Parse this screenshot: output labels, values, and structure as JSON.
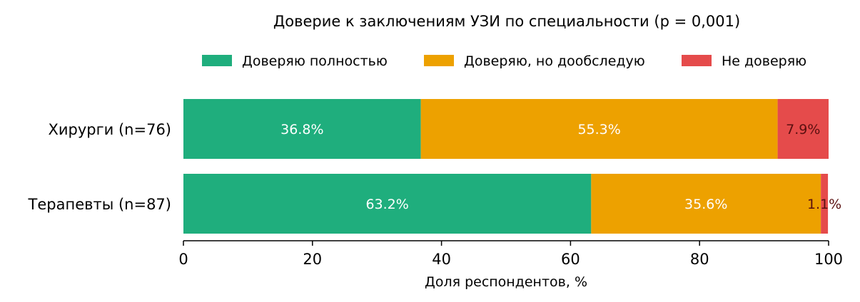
{
  "chart_data": {
    "type": "bar",
    "orientation": "horizontal",
    "stacked": true,
    "title": "Доверие к заключениям УЗИ по специальности (p = 0,001)",
    "xlabel": "Доля респондентов, %",
    "ylabel": "",
    "xlim": [
      0,
      100
    ],
    "xticks": [
      "0",
      "20",
      "40",
      "60",
      "80",
      "100"
    ],
    "grid": false,
    "legend_position": "top-center",
    "categories": [
      "Хирурги (n=76)",
      "Терапевты (n=87)"
    ],
    "series": [
      {
        "name": "Доверяю полностью",
        "color": "#1fae7d",
        "label_color": "#ffffff",
        "values": [
          36.8,
          63.2
        ],
        "labels": [
          "36.8%",
          "63.2%"
        ]
      },
      {
        "name": "Доверяю, но дообследую",
        "color": "#eda100",
        "label_color": "#ffffff",
        "values": [
          55.3,
          35.6
        ],
        "labels": [
          "55.3%",
          "35.6%"
        ]
      },
      {
        "name": "Не доверяю",
        "color": "#e54b4b",
        "label_color": "#5a1010",
        "values": [
          7.9,
          1.1
        ],
        "labels": [
          "7.9%",
          "1.1%"
        ]
      }
    ]
  }
}
